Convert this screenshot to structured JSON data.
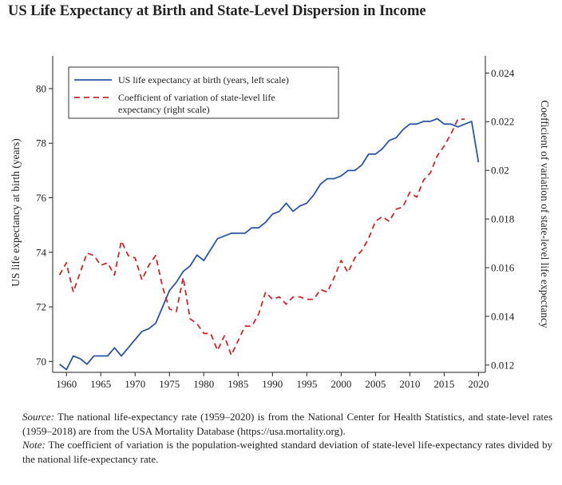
{
  "header": {
    "title": "US Life Expectancy at Birth and State-Level Dispersion in Income"
  },
  "chart_data": {
    "type": "line",
    "x_ticks": [
      1960,
      1965,
      1970,
      1975,
      1980,
      1985,
      1990,
      1995,
      2000,
      2005,
      2010,
      2015,
      2020
    ],
    "xlim": [
      1958,
      2021
    ],
    "y_left": {
      "label": "US life expectancy at birth (years)",
      "lim": [
        69.6,
        81.2
      ],
      "ticks": [
        70,
        72,
        74,
        76,
        78,
        80
      ]
    },
    "y_right": {
      "label": "Coefficient of variation of state-level life expectancy",
      "lim": [
        0.0117,
        0.0247
      ],
      "ticks": [
        0.012,
        0.014,
        0.016,
        0.018,
        0.02,
        0.022,
        0.024
      ],
      "tick_labels": [
        "0.012",
        "0.014",
        "0.016",
        "0.018",
        "0.02",
        "0.022",
        "0.024"
      ]
    },
    "legend": {
      "position": "top-left"
    },
    "series": [
      {
        "name": "US life expectancy at birth (years, left scale)",
        "axis": "left",
        "style": "solid",
        "color": "#2b55a4",
        "x": [
          1959,
          1960,
          1961,
          1962,
          1963,
          1964,
          1965,
          1966,
          1967,
          1968,
          1969,
          1970,
          1971,
          1972,
          1973,
          1974,
          1975,
          1976,
          1977,
          1978,
          1979,
          1980,
          1981,
          1982,
          1983,
          1984,
          1985,
          1986,
          1987,
          1988,
          1989,
          1990,
          1991,
          1992,
          1993,
          1994,
          1995,
          1996,
          1997,
          1998,
          1999,
          2000,
          2001,
          2002,
          2003,
          2004,
          2005,
          2006,
          2007,
          2008,
          2009,
          2010,
          2011,
          2012,
          2013,
          2014,
          2015,
          2016,
          2017,
          2018,
          2019,
          2020
        ],
        "y": [
          69.9,
          69.7,
          70.2,
          70.1,
          69.9,
          70.2,
          70.2,
          70.2,
          70.5,
          70.2,
          70.5,
          70.8,
          71.1,
          71.2,
          71.4,
          72.0,
          72.6,
          72.9,
          73.3,
          73.5,
          73.9,
          73.7,
          74.1,
          74.5,
          74.6,
          74.7,
          74.7,
          74.7,
          74.9,
          74.9,
          75.1,
          75.4,
          75.5,
          75.8,
          75.5,
          75.7,
          75.8,
          76.1,
          76.5,
          76.7,
          76.7,
          76.8,
          77.0,
          77.0,
          77.2,
          77.6,
          77.6,
          77.8,
          78.1,
          78.2,
          78.5,
          78.7,
          78.7,
          78.8,
          78.8,
          78.9,
          78.7,
          78.7,
          78.6,
          78.7,
          78.8,
          77.3
        ]
      },
      {
        "name": "Coefficient of variation of state-level life expectancy (right scale)",
        "axis": "right",
        "style": "dashed",
        "color": "#d5242a",
        "x": [
          1959,
          1960,
          1961,
          1962,
          1963,
          1964,
          1965,
          1966,
          1967,
          1968,
          1969,
          1970,
          1971,
          1972,
          1973,
          1974,
          1975,
          1976,
          1977,
          1978,
          1979,
          1980,
          1981,
          1982,
          1983,
          1984,
          1985,
          1986,
          1987,
          1988,
          1989,
          1990,
          1991,
          1992,
          1993,
          1994,
          1995,
          1996,
          1997,
          1998,
          1999,
          2000,
          2001,
          2002,
          2003,
          2004,
          2005,
          2006,
          2007,
          2008,
          2009,
          2010,
          2011,
          2012,
          2013,
          2014,
          2015,
          2016,
          2017,
          2018
        ],
        "y": [
          0.0157,
          0.0162,
          0.015,
          0.0158,
          0.0166,
          0.0165,
          0.0161,
          0.0162,
          0.0157,
          0.0171,
          0.0165,
          0.0164,
          0.0155,
          0.0161,
          0.0165,
          0.0152,
          0.0143,
          0.0142,
          0.0156,
          0.0139,
          0.0137,
          0.0133,
          0.0133,
          0.0126,
          0.0132,
          0.0124,
          0.013,
          0.0136,
          0.0136,
          0.0141,
          0.015,
          0.0147,
          0.0148,
          0.0145,
          0.0148,
          0.0148,
          0.0147,
          0.0147,
          0.0151,
          0.015,
          0.0156,
          0.0163,
          0.0158,
          0.0164,
          0.0167,
          0.0172,
          0.0179,
          0.0181,
          0.0179,
          0.0184,
          0.0185,
          0.0191,
          0.0189,
          0.0196,
          0.0199,
          0.0206,
          0.021,
          0.0215,
          0.0221,
          0.0221
        ]
      }
    ]
  },
  "notes": {
    "source_label": "Source:",
    "source_text": " The national life-expectancy rate (1959–2020) is from the National Center for Health Statistics, and state-level rates (1959–2018) are from the USA Mortality Database (https://usa.mortality.org).",
    "note_label": "Note:",
    "note_text": " The coefficient of variation is the population-weighted standard deviation of state-level life-expectancy rates divided by the national life-expectancy rate."
  }
}
